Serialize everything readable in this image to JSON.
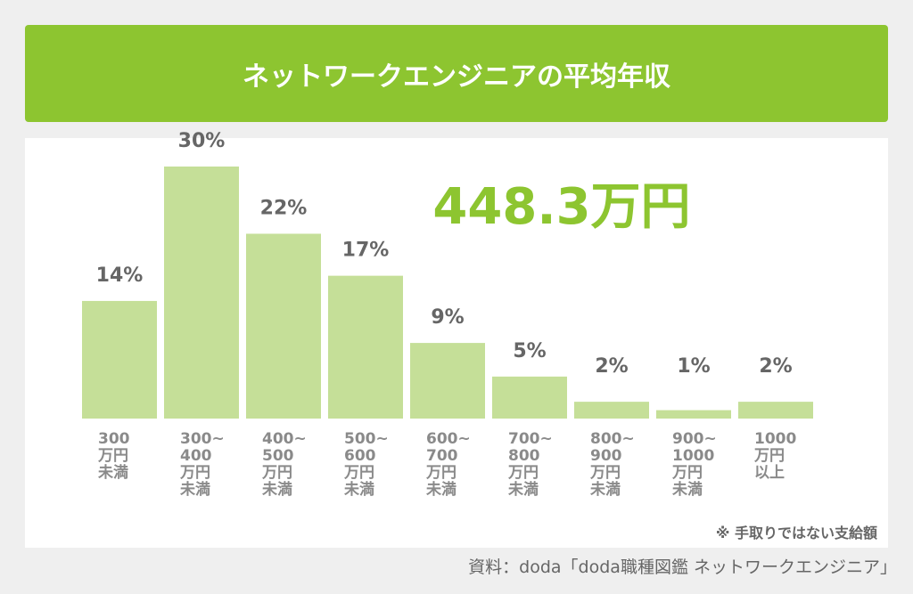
{
  "chart_data": {
    "type": "bar",
    "title": "ネットワークエンジニアの平均年収",
    "annotation": "448.3万円",
    "categories": [
      "300\n万円\n未満",
      "300~\n400\n万円\n未満",
      "400~\n500\n万円\n未満",
      "500~\n600\n万円\n未満",
      "600~\n700\n万円\n未満",
      "700~\n800\n万円\n未満",
      "800~\n900\n万円\n未満",
      "900~\n1000\n万円\n未満",
      "1000\n万円\n以上"
    ],
    "values": [
      14,
      30,
      22,
      17,
      9,
      5,
      2,
      1,
      2
    ],
    "value_labels": [
      "14%",
      "30%",
      "22%",
      "17%",
      "9%",
      "5%",
      "2%",
      "1%",
      "2%"
    ],
    "color": "#c5df98",
    "note": "※ 手取りではない支給額",
    "source": "資料：doda「doda職種図鑑 ネットワークエンジニア」"
  }
}
